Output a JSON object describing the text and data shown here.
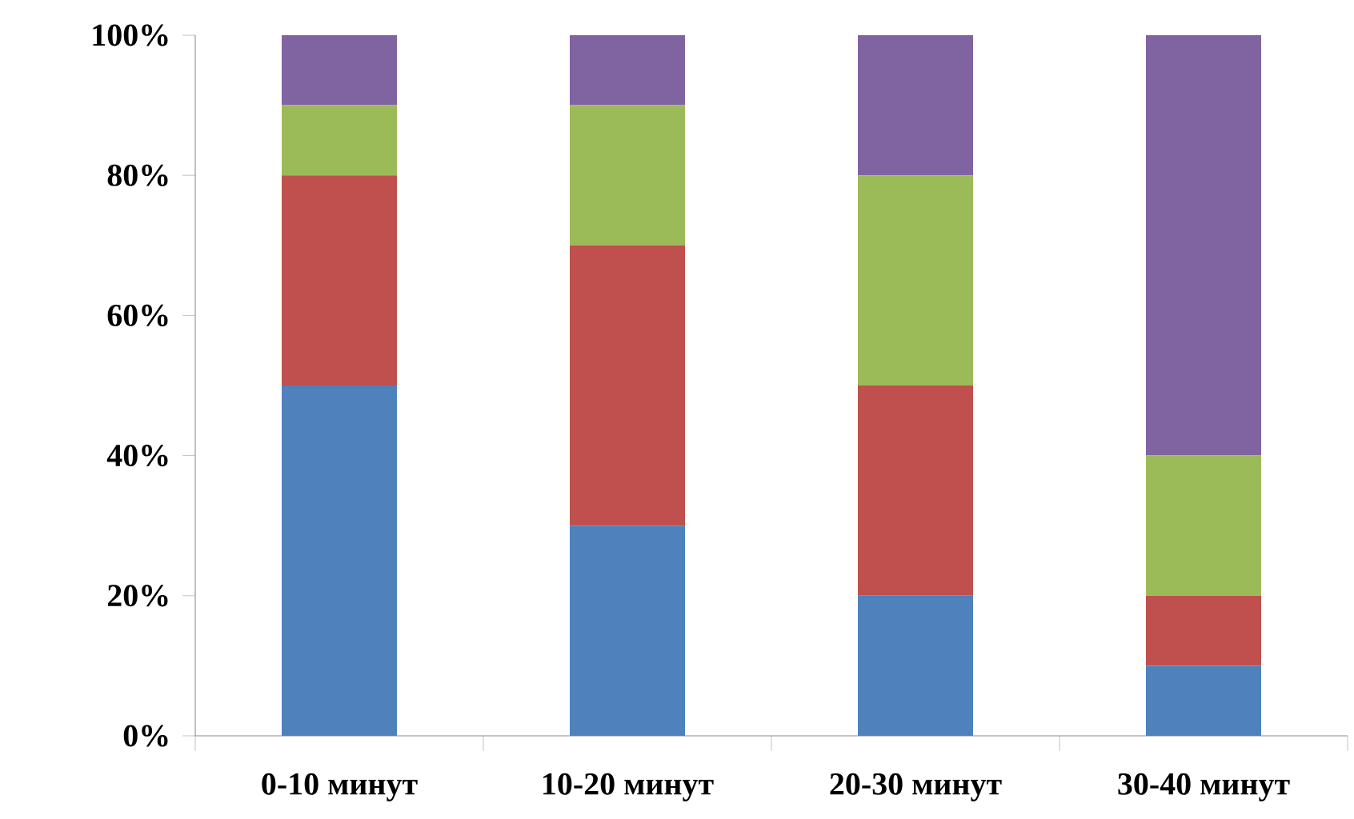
{
  "chart_data": {
    "type": "bar",
    "stacked": true,
    "categories": [
      "0-10 минут",
      "10-20 минут",
      "20-30 минут",
      "30-40 минут"
    ],
    "series": [
      {
        "color": "#4f81bd",
        "values": [
          50,
          30,
          20,
          10
        ]
      },
      {
        "color": "#c0504d",
        "values": [
          30,
          40,
          30,
          10
        ]
      },
      {
        "color": "#9bbb59",
        "values": [
          10,
          20,
          30,
          20
        ]
      },
      {
        "color": "#8064a2",
        "values": [
          10,
          10,
          20,
          60
        ]
      }
    ],
    "ylim": [
      0,
      100
    ],
    "yticks": [
      {
        "value": 0,
        "label": "0%"
      },
      {
        "value": 20,
        "label": "20%"
      },
      {
        "value": 40,
        "label": "40%"
      },
      {
        "value": 60,
        "label": "60%"
      },
      {
        "value": 80,
        "label": "80%"
      },
      {
        "value": 100,
        "label": "100%"
      }
    ]
  }
}
